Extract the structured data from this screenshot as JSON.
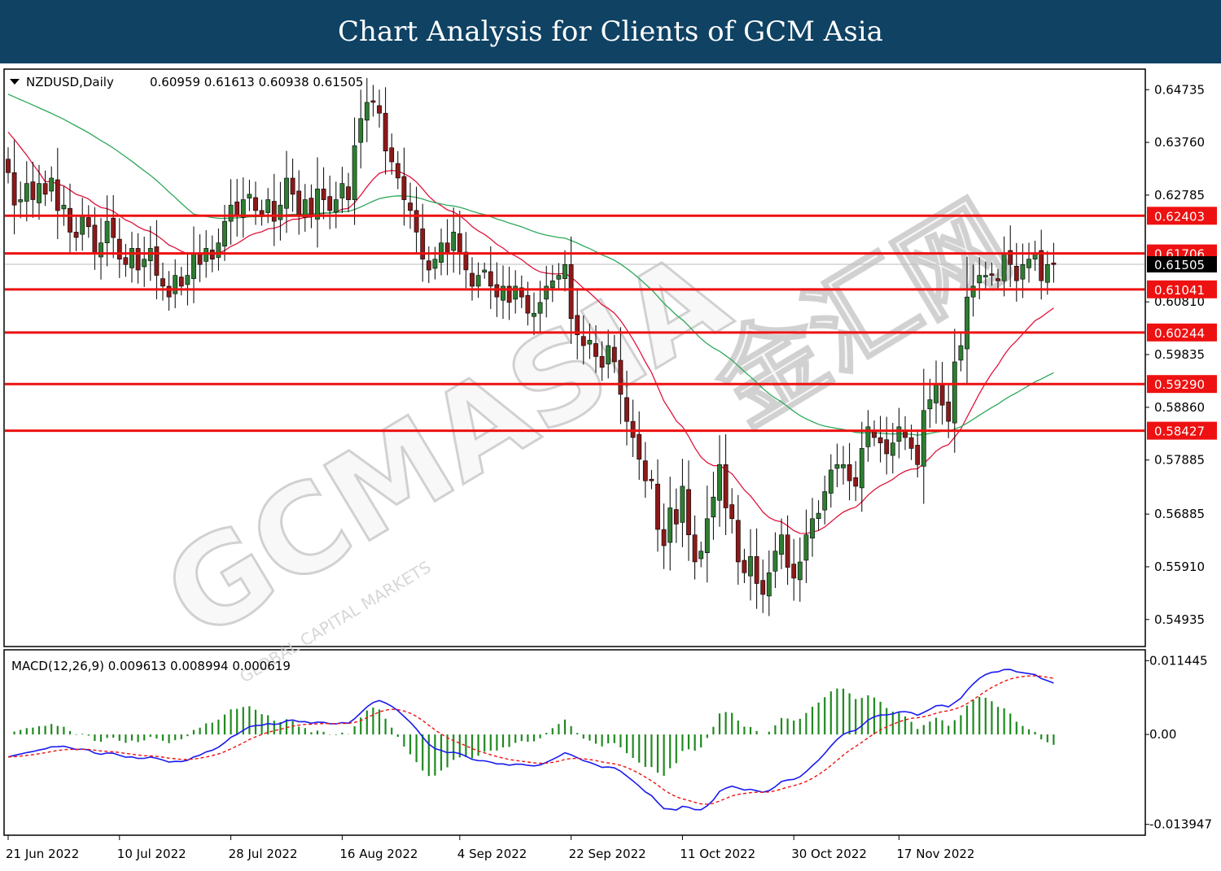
{
  "banner": {
    "title": "Chart Analysis for Clients of GCM Asia"
  },
  "watermark": {
    "brand": "GCMASIA",
    "sub": "GLOBAL CAPITAL MARKETS",
    "cjk": "金汇网"
  },
  "colors": {
    "banner_bg": "#0f4263",
    "bull_candle": "#2e7d32",
    "bear_candle": "#8b1a1a",
    "sma_fast": "#e0143c",
    "sma_slow": "#2ea85a",
    "sr_line": "#ee1111",
    "macd_line": "#1a1aee",
    "signal_line": "#ee1111",
    "histogram": "#1f8a1f"
  },
  "chart_data": [
    {
      "type": "candlestick",
      "symbol_label": "NZDUSD,Daily",
      "ohlc_label": "0.60959 0.61613 0.60938 0.61505",
      "current_price": "0.61505",
      "ylim": [
        0.5445,
        0.651
      ],
      "y_ticks": [
        "0.64735",
        "0.63760",
        "0.62785",
        "0.60810",
        "0.59835",
        "0.58860",
        "0.57885",
        "0.56885",
        "0.55910",
        "0.54935"
      ],
      "x_ticks": [
        "21 Jun 2022",
        "10 Jul 2022",
        "28 Jul 2022",
        "16 Aug 2022",
        "4 Sep 2022",
        "22 Sep 2022",
        "11 Oct 2022",
        "30 Oct 2022",
        "17 Nov 2022"
      ],
      "levels": [
        "0.62403",
        "0.61706",
        "0.61041",
        "0.60244",
        "0.59290",
        "0.58427"
      ],
      "closes": [
        0.632,
        0.626,
        0.627,
        0.63,
        0.627,
        0.63,
        0.628,
        0.631,
        0.625,
        0.626,
        0.621,
        0.62,
        0.624,
        0.622,
        0.617,
        0.619,
        0.623,
        0.62,
        0.616,
        0.615,
        0.618,
        0.614,
        0.616,
        0.618,
        0.613,
        0.611,
        0.609,
        0.613,
        0.611,
        0.613,
        0.617,
        0.615,
        0.618,
        0.616,
        0.619,
        0.623,
        0.626,
        0.624,
        0.627,
        0.628,
        0.625,
        0.624,
        0.627,
        0.623,
        0.626,
        0.631,
        0.628,
        0.624,
        0.627,
        0.624,
        0.629,
        0.627,
        0.625,
        0.627,
        0.63,
        0.627,
        0.637,
        0.642,
        0.645,
        0.645,
        0.643,
        0.636,
        0.634,
        0.631,
        0.627,
        0.625,
        0.621,
        0.616,
        0.614,
        0.616,
        0.619,
        0.617,
        0.621,
        0.617,
        0.614,
        0.611,
        0.613,
        0.614,
        0.611,
        0.609,
        0.611,
        0.608,
        0.611,
        0.609,
        0.606,
        0.606,
        0.608,
        0.611,
        0.612,
        0.613,
        0.615,
        0.605,
        0.602,
        0.6,
        0.601,
        0.598,
        0.596,
        0.6,
        0.597,
        0.591,
        0.586,
        0.583,
        0.579,
        0.575,
        0.575,
        0.566,
        0.563,
        0.57,
        0.567,
        0.574,
        0.565,
        0.56,
        0.562,
        0.568,
        0.572,
        0.578,
        0.57,
        0.568,
        0.56,
        0.558,
        0.561,
        0.556,
        0.554,
        0.558,
        0.562,
        0.565,
        0.559,
        0.557,
        0.56,
        0.565,
        0.568,
        0.569,
        0.573,
        0.577,
        0.578,
        0.578,
        0.575,
        0.574,
        0.581,
        0.585,
        0.583,
        0.582,
        0.58,
        0.582,
        0.585,
        0.583,
        0.581,
        0.578,
        0.588,
        0.59,
        0.593,
        0.589,
        0.586,
        0.597,
        0.6,
        0.609,
        0.611,
        0.613,
        0.613,
        0.613,
        0.612,
        0.617,
        0.615,
        0.612,
        0.615,
        0.616,
        0.617,
        0.612,
        0.615,
        0.615
      ]
    },
    {
      "type": "line",
      "indicator_label": "MACD(12,26,9) 0.009613 0.008994 0.000619",
      "ylim": [
        -0.0155,
        0.013
      ],
      "y_ticks": [
        "0.011445",
        "0.00",
        "-0.013947"
      ],
      "x_ticks": [
        "21 Jun 2022",
        "10 Jul 2022",
        "28 Jul 2022",
        "16 Aug 2022",
        "4 Sep 2022",
        "22 Sep 2022",
        "11 Oct 2022",
        "30 Oct 2022",
        "17 Nov 2022"
      ]
    }
  ]
}
